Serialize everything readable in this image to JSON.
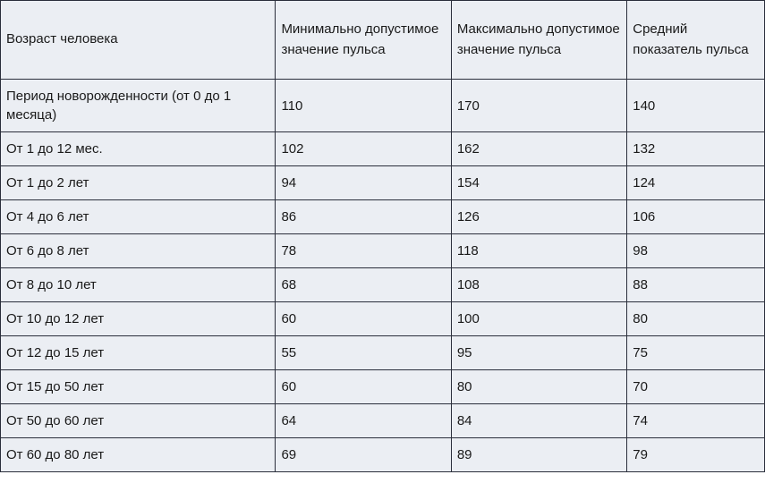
{
  "table": {
    "type": "table",
    "background_color": "#ebeef3",
    "border_color": "#2a2e3b",
    "text_color": "#1a1a1a",
    "font_size": 15,
    "columns": [
      "Возраст человека",
      "Минимально допустимое значение пульса",
      "Максимально допустимое значение пульса",
      "Средний показатель пульса"
    ],
    "column_widths_pct": [
      36,
      23,
      23,
      18
    ],
    "rows": [
      [
        "Период новорожденности (от 0 до 1 месяца)",
        "110",
        "170",
        "140"
      ],
      [
        "От 1 до 12 мес.",
        "102",
        "162",
        "132"
      ],
      [
        "От 1 до 2 лет",
        "94",
        "154",
        "124"
      ],
      [
        "От 4 до 6 лет",
        "86",
        "126",
        "106"
      ],
      [
        "От 6 до 8 лет",
        "78",
        "118",
        "98"
      ],
      [
        "От 8 до 10 лет",
        "68",
        "108",
        "88"
      ],
      [
        "От 10 до 12 лет",
        "60",
        "100",
        "80"
      ],
      [
        "От 12 до 15 лет",
        "55",
        "95",
        "75"
      ],
      [
        "От 15 до 50 лет",
        "60",
        "80",
        "70"
      ],
      [
        "От 50 до 60 лет",
        "64",
        "84",
        "74"
      ],
      [
        "От 60 до 80 лет",
        "69",
        "89",
        "79"
      ]
    ]
  }
}
